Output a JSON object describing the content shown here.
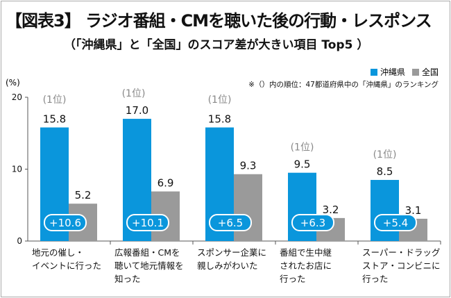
{
  "title": "【図表3】 ラジオ番組・CMを聴いた後の行動・レスポンス",
  "subtitle": "（「沖縄県」と「全国」のスコア差が大きい項目 Top5 ）",
  "note": "※（）内の順位：47都道府県中の「沖縄県」のランキング",
  "colors": {
    "okinawa": "#0a96dc",
    "national": "#9a9a9a",
    "rank": "#888888"
  },
  "chart_data": {
    "type": "bar",
    "ylabel": "(%)",
    "ylim": [
      0,
      20
    ],
    "yticks": [
      "0",
      "10",
      "20"
    ],
    "legend_position": "top-right",
    "categories": [
      "地元の催し・\nイベントに行った",
      "広報番組・CMを\n聴いて地元情報を\n知った",
      "スポンサー企業に\n親しみがわいた",
      "番組で生中継\nされたお店に\n行った",
      "スーパー・ドラッグ\nストア・コンビニに\n行った"
    ],
    "series": [
      {
        "name": "沖縄県",
        "values": [
          15.8,
          17.0,
          15.8,
          9.5,
          8.5
        ],
        "labels": [
          "15.8",
          "17.0",
          "15.8",
          "9.5",
          "8.5"
        ]
      },
      {
        "name": "全国",
        "values": [
          5.2,
          6.9,
          9.3,
          3.2,
          3.1
        ],
        "labels": [
          "5.2",
          "6.9",
          "9.3",
          "3.2",
          "3.1"
        ]
      }
    ],
    "differences": [
      "+10.6",
      "+10.1",
      "+6.5",
      "+6.3",
      "+5.4"
    ],
    "ranks": [
      "(1位)",
      "(1位)",
      "(1位)",
      "(1位)",
      "(1位)"
    ]
  }
}
